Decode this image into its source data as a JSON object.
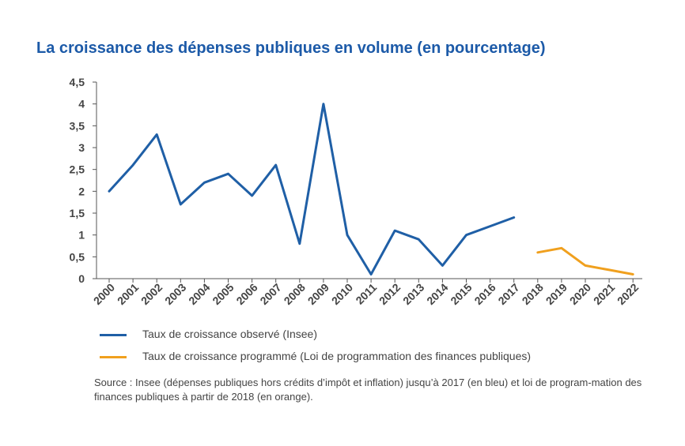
{
  "chart_data": {
    "type": "line",
    "title": "La croissance des dépenses publiques en volume (en pourcentage)",
    "xlabel": "",
    "ylabel": "",
    "ylim": [
      0,
      4.5
    ],
    "yticks": [
      "0",
      "0,5",
      "1",
      "1,5",
      "2",
      "2,5",
      "3",
      "3,5",
      "4",
      "4,5"
    ],
    "categories": [
      "2000",
      "2001",
      "2002",
      "2003",
      "2004",
      "2005",
      "2006",
      "2007",
      "2008",
      "2009",
      "2010",
      "2011",
      "2012",
      "2013",
      "2014",
      "2015",
      "2016",
      "2017",
      "2018",
      "2019",
      "2020",
      "2021",
      "2022"
    ],
    "grid": false,
    "series": [
      {
        "name": "Taux de croissance observé (Insee)",
        "color": "#1f5fa6",
        "values": [
          2.0,
          2.6,
          3.3,
          1.7,
          2.2,
          2.4,
          1.9,
          2.6,
          0.8,
          4.0,
          1.0,
          0.1,
          1.1,
          0.9,
          0.3,
          1.0,
          1.2,
          1.4,
          null,
          null,
          null,
          null,
          null
        ]
      },
      {
        "name": "Taux de croissance programmé (Loi de programmation des finances publiques)",
        "color": "#f0a01e",
        "values": [
          null,
          null,
          null,
          null,
          null,
          null,
          null,
          null,
          null,
          null,
          null,
          null,
          null,
          null,
          null,
          null,
          null,
          null,
          0.6,
          0.7,
          0.3,
          0.2,
          0.1
        ]
      }
    ],
    "legend_position": "bottom-left"
  },
  "source": "Source : Insee (dépenses publiques hors crédits d’impôt et inflation) jusqu’à 2017 (en bleu) et loi de program-mation des finances publiques à partir de 2018 (en orange).",
  "colors": {
    "title": "#1c5aa8",
    "axis": "#555555",
    "text": "#444444"
  }
}
